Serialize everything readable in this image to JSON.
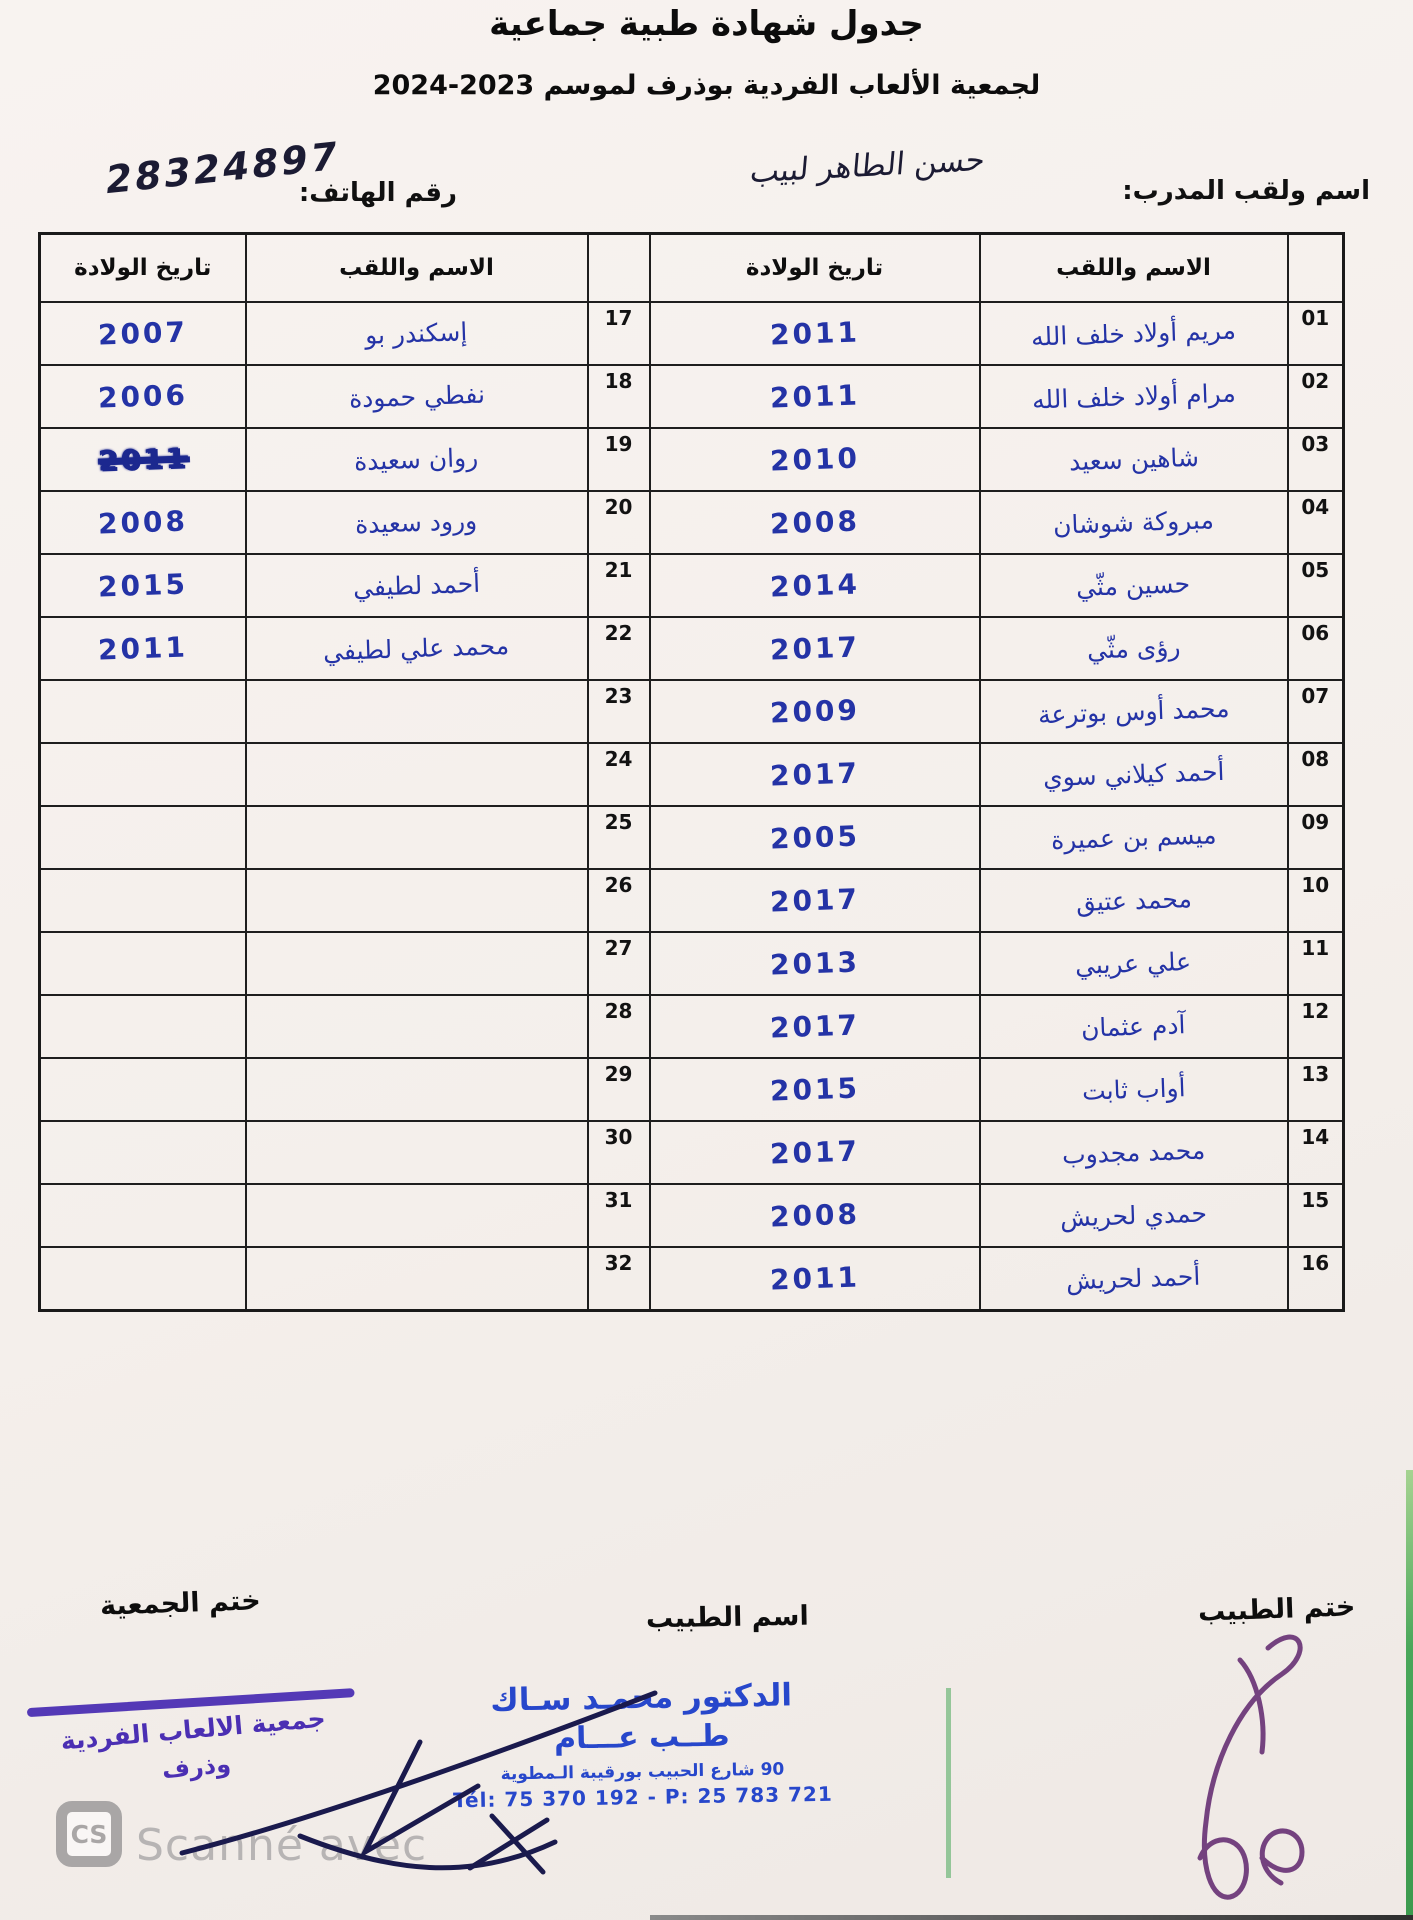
{
  "document": {
    "title": "جدول شهادة طبية جماعية",
    "subtitle": "لجمعية الألعاب الفردية بوذرف لموسم",
    "season_display": "2024-2023"
  },
  "coach_line": {
    "coach_label": "اسم ولقب المدرب:",
    "coach_name_handwritten": "حسن الطاهر لبيب",
    "phone_label": "رقم الهاتف:",
    "phone_handwritten": "28324897"
  },
  "table": {
    "header_name": "الاسم واللقب",
    "header_dob": "تاريخ الولادة",
    "rows": [
      {
        "num_right": "01",
        "name_right": "مريم أولاد خلف الله",
        "dob_right": "2011",
        "num_left": "17",
        "name_left": "إسكندر بو",
        "dob_left": "2007",
        "dob_left_struck": false
      },
      {
        "num_right": "02",
        "name_right": "مرام أولاد خلف الله",
        "dob_right": "2011",
        "num_left": "18",
        "name_left": "نفطي حمودة",
        "dob_left": "2006",
        "dob_left_struck": false
      },
      {
        "num_right": "03",
        "name_right": "شاهين سعيد",
        "dob_right": "2010",
        "num_left": "19",
        "name_left": "روان سعيدة",
        "dob_left": "2011",
        "dob_left_struck": true
      },
      {
        "num_right": "04",
        "name_right": "مبروكة شوشان",
        "dob_right": "2008",
        "num_left": "20",
        "name_left": "ورود سعيدة",
        "dob_left": "2008",
        "dob_left_struck": false
      },
      {
        "num_right": "05",
        "name_right": "حسين مثّي",
        "dob_right": "2014",
        "num_left": "21",
        "name_left": "أحمد لطيفي",
        "dob_left": "2015",
        "dob_left_struck": false
      },
      {
        "num_right": "06",
        "name_right": "رؤى مثّي",
        "dob_right": "2017",
        "num_left": "22",
        "name_left": "محمد علي لطيفي",
        "dob_left": "2011",
        "dob_left_struck": false
      },
      {
        "num_right": "07",
        "name_right": "محمد أوس بوترعة",
        "dob_right": "2009",
        "num_left": "23",
        "name_left": "",
        "dob_left": "",
        "dob_left_struck": false
      },
      {
        "num_right": "08",
        "name_right": "أحمد كيلاني سوي",
        "dob_right": "2017",
        "num_left": "24",
        "name_left": "",
        "dob_left": "",
        "dob_left_struck": false
      },
      {
        "num_right": "09",
        "name_right": "ميسم بن عميرة",
        "dob_right": "2005",
        "num_left": "25",
        "name_left": "",
        "dob_left": "",
        "dob_left_struck": false
      },
      {
        "num_right": "10",
        "name_right": "محمد عتيق",
        "dob_right": "2017",
        "num_left": "26",
        "name_left": "",
        "dob_left": "",
        "dob_left_struck": false
      },
      {
        "num_right": "11",
        "name_right": "علي عريبي",
        "dob_right": "2013",
        "num_left": "27",
        "name_left": "",
        "dob_left": "",
        "dob_left_struck": false
      },
      {
        "num_right": "12",
        "name_right": "آدم عثمان",
        "dob_right": "2017",
        "num_left": "28",
        "name_left": "",
        "dob_left": "",
        "dob_left_struck": false
      },
      {
        "num_right": "13",
        "name_right": "أواب ثابت",
        "dob_right": "2015",
        "num_left": "29",
        "name_left": "",
        "dob_left": "",
        "dob_left_struck": false
      },
      {
        "num_right": "14",
        "name_right": "محمد مجدوب",
        "dob_right": "2017",
        "num_left": "30",
        "name_left": "",
        "dob_left": "",
        "dob_left_struck": false
      },
      {
        "num_right": "15",
        "name_right": "حمدي لحريش",
        "dob_right": "2008",
        "num_left": "31",
        "name_left": "",
        "dob_left": "",
        "dob_left_struck": false
      },
      {
        "num_right": "16",
        "name_right": "أحمد لحريش",
        "dob_right": "2011",
        "num_left": "32",
        "name_left": "",
        "dob_left": "",
        "dob_left_struck": false
      }
    ]
  },
  "footer": {
    "doctor_stamp_label": "ختم الطبيب",
    "doctor_name_label": "اسم الطبيب",
    "association_stamp_label": "ختم الجمعية",
    "doctor_stamp": {
      "line1": "الدكتور محمـد سـاك",
      "line2": "طــب عـــام",
      "line3": "90 شارع الحبيب بورقيبة الـمطوية",
      "line4": "Tél: 75 370 192 - P: 25 783 721"
    },
    "association_stamp": {
      "line1": "جمعية الالعاب الفردية",
      "line2": "وذرف"
    },
    "scan_watermark": {
      "logo": "CS",
      "text": "Scanné avec"
    }
  },
  "colors": {
    "ink_blue": "#2433a6",
    "ink_dark": "#1b1b33",
    "stamp_blue": "#2747cb",
    "stamp_purple": "#4b2fb3",
    "signature_purple": "#74427f",
    "signature_navy": "#1a1a4d",
    "watermark_gray": "#b7b4b4",
    "edge_green": "#49a75a"
  }
}
